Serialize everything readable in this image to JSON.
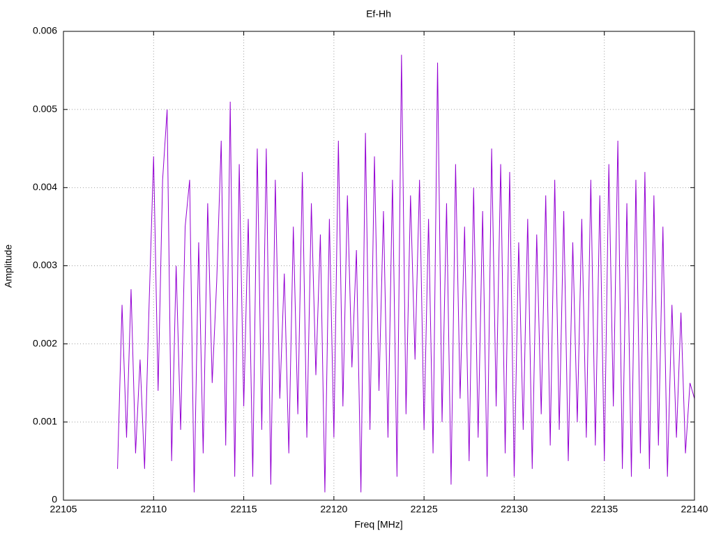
{
  "chart_data": {
    "type": "line",
    "title": "Ef-Hh",
    "x_label": "Freq [MHz]",
    "y_label": "Amplitude",
    "color": "#9400d3",
    "grid": true,
    "xlim": [
      22105,
      22140
    ],
    "xticks": [
      22105,
      22110,
      22115,
      22120,
      22125,
      22130,
      22135,
      22140
    ],
    "ylim": [
      0,
      0.006
    ],
    "yticks": [
      0,
      0.001,
      0.002,
      0.003,
      0.004,
      0.005,
      0.006
    ],
    "x": [
      22108,
      22108.25,
      22108.5,
      22108.75,
      22109,
      22109.25,
      22109.5,
      22109.75,
      22110,
      22110.25,
      22110.5,
      22110.75,
      22111,
      22111.25,
      22111.5,
      22111.75,
      22112,
      22112.25,
      22112.5,
      22112.75,
      22113,
      22113.25,
      22113.5,
      22113.75,
      22114,
      22114.25,
      22114.5,
      22114.75,
      22115,
      22115.25,
      22115.5,
      22115.75,
      22116,
      22116.25,
      22116.5,
      22116.75,
      22117,
      22117.25,
      22117.5,
      22117.75,
      22118,
      22118.25,
      22118.5,
      22118.75,
      22119,
      22119.25,
      22119.5,
      22119.75,
      22120,
      22120.25,
      22120.5,
      22120.75,
      22121,
      22121.25,
      22121.5,
      22121.75,
      22122,
      22122.25,
      22122.5,
      22122.75,
      22123,
      22123.25,
      22123.5,
      22123.75,
      22124,
      22124.25,
      22124.5,
      22124.75,
      22125,
      22125.25,
      22125.5,
      22125.75,
      22126,
      22126.25,
      22126.5,
      22126.75,
      22127,
      22127.25,
      22127.5,
      22127.75,
      22128,
      22128.25,
      22128.5,
      22128.75,
      22129,
      22129.25,
      22129.5,
      22129.75,
      22130,
      22130.25,
      22130.5,
      22130.75,
      22131,
      22131.25,
      22131.5,
      22131.75,
      22132,
      22132.25,
      22132.5,
      22132.75,
      22133,
      22133.25,
      22133.5,
      22133.75,
      22134,
      22134.25,
      22134.5,
      22134.75,
      22135,
      22135.25,
      22135.5,
      22135.75,
      22136,
      22136.25,
      22136.5,
      22136.75,
      22137,
      22137.25,
      22137.5,
      22137.75,
      22138,
      22138.25,
      22138.5,
      22138.75,
      22139,
      22139.25,
      22139.5,
      22139.75,
      22140
    ],
    "values": [
      0.0004,
      0.0025,
      0.0008,
      0.0027,
      0.0006,
      0.0018,
      0.0004,
      0.0025,
      0.0044,
      0.0014,
      0.0041,
      0.005,
      0.0005,
      0.003,
      0.0009,
      0.0035,
      0.0041,
      0.0001,
      0.0033,
      0.0006,
      0.0038,
      0.0015,
      0.0028,
      0.0046,
      0.0007,
      0.0051,
      0.0003,
      0.0043,
      0.0012,
      0.0036,
      0.0003,
      0.0045,
      0.0009,
      0.0045,
      0.0002,
      0.0041,
      0.0013,
      0.0029,
      0.0006,
      0.0035,
      0.0011,
      0.0042,
      0.0008,
      0.0038,
      0.0016,
      0.0034,
      0.0001,
      0.0036,
      0.0008,
      0.0046,
      0.0012,
      0.0039,
      0.0017,
      0.0032,
      0.0001,
      0.0047,
      0.0009,
      0.0044,
      0.0014,
      0.0037,
      0.0008,
      0.0041,
      0.0003,
      0.0057,
      0.0011,
      0.0039,
      0.0018,
      0.0041,
      0.0009,
      0.0036,
      0.0006,
      0.0056,
      0.001,
      0.0038,
      0.0002,
      0.0043,
      0.0013,
      0.0035,
      0.0005,
      0.004,
      0.0008,
      0.0037,
      0.0003,
      0.0045,
      0.0012,
      0.0043,
      0.0006,
      0.0042,
      0.0003,
      0.0033,
      0.0009,
      0.0036,
      0.0004,
      0.0034,
      0.0011,
      0.0039,
      0.0007,
      0.0041,
      0.0009,
      0.0037,
      0.0005,
      0.0033,
      0.001,
      0.0036,
      0.0008,
      0.0041,
      0.0007,
      0.0039,
      0.0005,
      0.0043,
      0.0012,
      0.0046,
      0.0004,
      0.0038,
      0.0003,
      0.0041,
      0.0006,
      0.0042,
      0.0004,
      0.0039,
      0.0007,
      0.0035,
      0.0003,
      0.0025,
      0.0008,
      0.0024,
      0.0006,
      0.0015,
      0.0013
    ]
  }
}
